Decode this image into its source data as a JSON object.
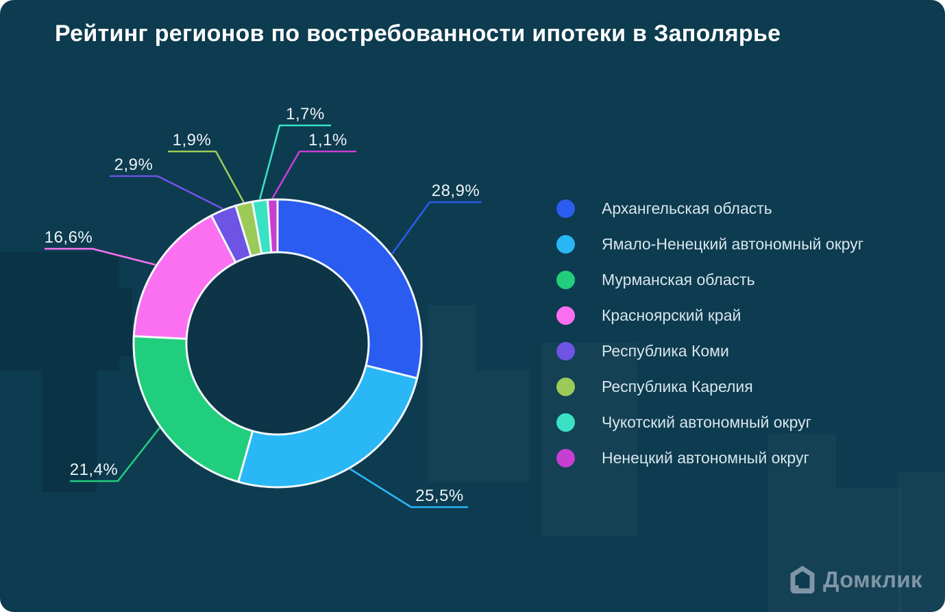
{
  "title": "Рейтинг регионов по востребованности ипотеки в Заполярье",
  "chart_data": {
    "type": "pie",
    "subtype": "donut",
    "title": "Рейтинг регионов по востребованности ипотеки в Заполярье",
    "categories": [
      "Архангельская область",
      "Ямало-Ненецкий автономный округ",
      "Мурманская область",
      "Красноярский край",
      "Республика Коми",
      "Республика Карелия",
      "Чукотский автономный округ",
      "Ненецкий автономный округ"
    ],
    "values": [
      28.9,
      25.5,
      21.4,
      16.6,
      2.9,
      1.9,
      1.7,
      1.1
    ],
    "labels": [
      "28,9%",
      "25,5%",
      "21,4%",
      "16,6%",
      "2,9%",
      "1,9%",
      "1,7%",
      "1,1%"
    ],
    "colors": [
      "#2a5cf0",
      "#29b7f6",
      "#21ce7d",
      "#fb70f1",
      "#6d54e5",
      "#9cca59",
      "#38e2c3",
      "#c73ed3"
    ],
    "legend_position": "right",
    "start_angle_deg": 0,
    "direction": "clockwise",
    "grid": false
  },
  "logo": {
    "text": "Домклик",
    "icon": "house-logo-icon",
    "color": "#8095a6"
  },
  "colors": {
    "background": "#0d3b4f",
    "donut_hole": "#0d3447",
    "slice_stroke": "#f2f7fa",
    "callout_label": "#edf4f7",
    "legend_text": "#d8e5ec",
    "title_text": "#ffffff"
  }
}
